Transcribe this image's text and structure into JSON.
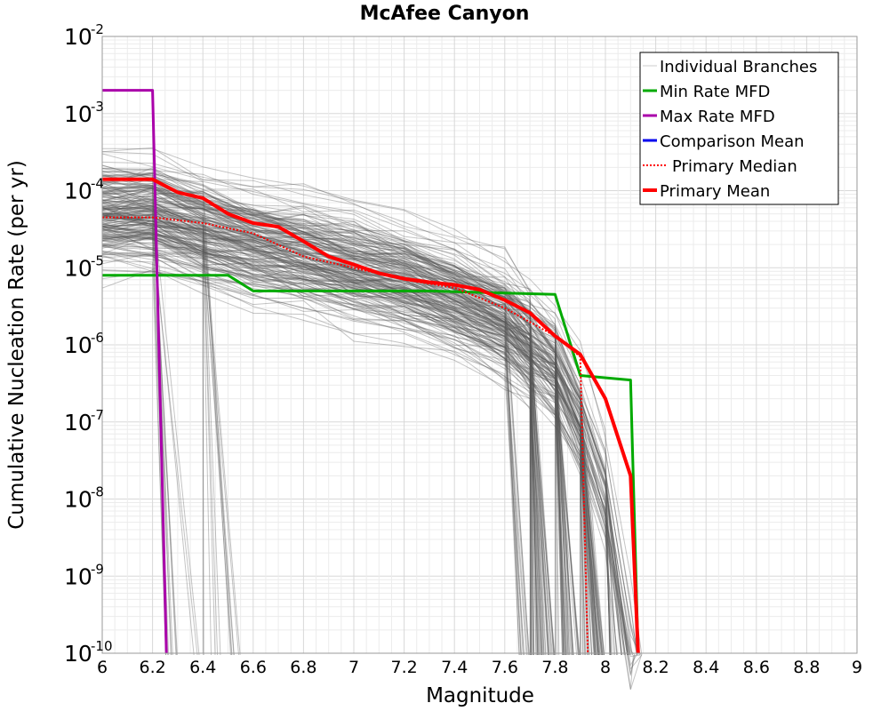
{
  "chart_data": {
    "type": "line",
    "title": "McAfee Canyon",
    "xlabel": "Magnitude",
    "ylabel": "Cumulative Nucleation Rate (per yr)",
    "xlim": [
      6,
      9
    ],
    "ylim": [
      1e-10,
      0.01
    ],
    "yscale": "log",
    "grid": true,
    "legend_position": "top-right",
    "x_ticks": [
      "6",
      "6.2",
      "6.4",
      "6.6",
      "6.8",
      "7",
      "7.2",
      "7.4",
      "7.6",
      "7.8",
      "8",
      "8.2",
      "8.4",
      "8.6",
      "8.8",
      "9"
    ],
    "y_ticks": [
      {
        "base": "10",
        "exp": "-10"
      },
      {
        "base": "10",
        "exp": "-9"
      },
      {
        "base": "10",
        "exp": "-8"
      },
      {
        "base": "10",
        "exp": "-7"
      },
      {
        "base": "10",
        "exp": "-6"
      },
      {
        "base": "10",
        "exp": "-5"
      },
      {
        "base": "10",
        "exp": "-4"
      },
      {
        "base": "10",
        "exp": "-3"
      },
      {
        "base": "10",
        "exp": "-2"
      }
    ],
    "series": [
      {
        "name": "Individual Branches",
        "color": "#555555",
        "style": "thin",
        "x": [
          6.0,
          6.2,
          6.4,
          6.6,
          6.8,
          7.0,
          7.2,
          7.4,
          7.6,
          7.7,
          7.8,
          7.9,
          8.0,
          8.1
        ],
        "y": [
          5e-05,
          5e-05,
          3e-05,
          2e-05,
          1.5e-05,
          1e-05,
          7e-06,
          4e-06,
          2e-06,
          1e-06,
          5e-07,
          1e-07,
          1e-08,
          1e-10
        ]
      },
      {
        "name": "Min Rate MFD",
        "color": "#00aa00",
        "x": [
          6.0,
          6.5,
          6.6,
          7.3,
          7.8,
          7.9,
          8.1,
          8.13
        ],
        "y": [
          8e-06,
          8e-06,
          5e-06,
          5e-06,
          4.5e-06,
          4e-07,
          3.5e-07,
          1e-10
        ]
      },
      {
        "name": "Max Rate MFD",
        "color": "#aa00aa",
        "x": [
          6.0,
          6.2,
          6.255
        ],
        "y": [
          0.002,
          0.002,
          1e-10
        ]
      },
      {
        "name": "Comparison Mean",
        "color": "#0000ee",
        "x": [],
        "y": []
      },
      {
        "name": "Primary Median",
        "color": "#ff0000",
        "style": "dotted",
        "x": [
          6.0,
          6.2,
          6.4,
          6.6,
          6.8,
          7.0,
          7.2,
          7.4,
          7.6,
          7.8,
          7.9,
          7.93
        ],
        "y": [
          4.5e-05,
          4.5e-05,
          3.8e-05,
          2.8e-05,
          1.4e-05,
          1e-05,
          7e-06,
          5.5e-06,
          3e-06,
          1.3e-06,
          7e-07,
          1e-10
        ]
      },
      {
        "name": "Primary Mean",
        "color": "#ff0000",
        "style": "thick",
        "x": [
          6.0,
          6.2,
          6.3,
          6.4,
          6.5,
          6.6,
          6.7,
          6.8,
          6.9,
          7.0,
          7.1,
          7.2,
          7.3,
          7.4,
          7.5,
          7.6,
          7.7,
          7.8,
          7.9,
          8.0,
          8.1,
          8.13
        ],
        "y": [
          0.00014,
          0.00014,
          9.5e-05,
          8e-05,
          5e-05,
          3.8e-05,
          3.4e-05,
          2.2e-05,
          1.4e-05,
          1.1e-05,
          8.5e-06,
          7.2e-06,
          6.5e-06,
          6e-06,
          5.2e-06,
          3.8e-06,
          2.6e-06,
          1.3e-06,
          7.5e-07,
          2e-07,
          2e-08,
          1e-10
        ]
      }
    ]
  }
}
